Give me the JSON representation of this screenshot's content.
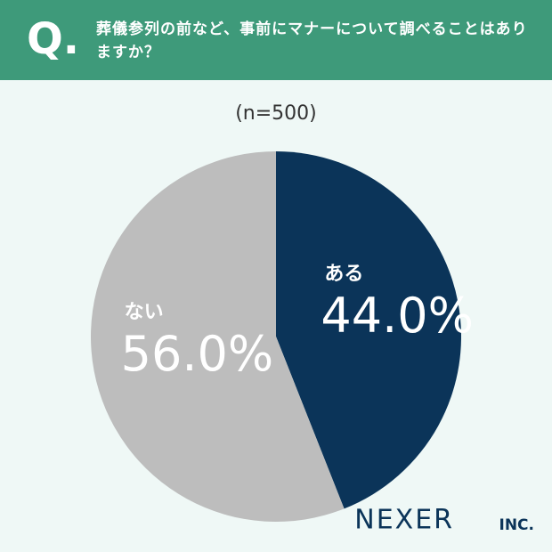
{
  "chart_data": {
    "type": "pie",
    "question_marker": "Q.",
    "title": "葬儀参列の前など、事前にマナーについて調べることはありますか？",
    "subtitle": "(n=500)",
    "categories": [
      "ある",
      "ない"
    ],
    "values": [
      44.0,
      56.0
    ],
    "value_labels": [
      "44.0%",
      "56.0%"
    ],
    "colors": [
      "#0b3459",
      "#bdbdbd"
    ],
    "brand": "NEXER",
    "brand_suffix": "INC."
  }
}
